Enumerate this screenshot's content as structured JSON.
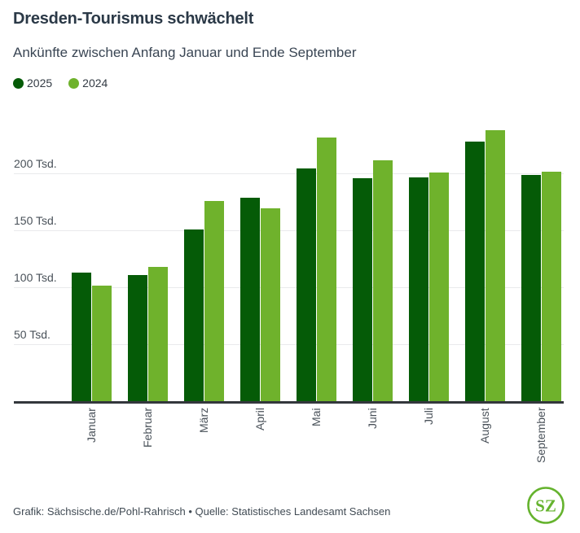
{
  "chart_data": {
    "type": "bar",
    "title": "Dresden-Tourismus schwächelt",
    "subtitle": "Ankünfte zwischen Anfang Januar und Ende September",
    "unit": "Tsd.",
    "categories": [
      "Januar",
      "Februar",
      "März",
      "April",
      "Mai",
      "Juni",
      "Juli",
      "August",
      "September"
    ],
    "series": [
      {
        "name": "2025",
        "color": "#055b07",
        "values": [
          113,
          111,
          151,
          179,
          205,
          196,
          197,
          228,
          199
        ]
      },
      {
        "name": "2024",
        "color": "#6fb22c",
        "values": [
          102,
          118,
          176,
          170,
          232,
          212,
          201,
          238,
          202
        ]
      }
    ],
    "yticks": [
      {
        "value": 50,
        "label": "50 Tsd."
      },
      {
        "value": 100,
        "label": "100 Tsd."
      },
      {
        "value": 150,
        "label": "150 Tsd."
      },
      {
        "value": 200,
        "label": "200 Tsd."
      }
    ],
    "ylim": [
      0,
      245
    ],
    "grid": true,
    "legend_position": "top-left",
    "axis_color": "#33373c",
    "gridline_color": "#e9eaec"
  },
  "footer": {
    "credit": "Grafik: Sächsische.de/Pohl-Rahrisch • Quelle: Statistisches Landesamt Sachsen",
    "logo_text": "SZ",
    "logo_color": "#65b32e"
  }
}
